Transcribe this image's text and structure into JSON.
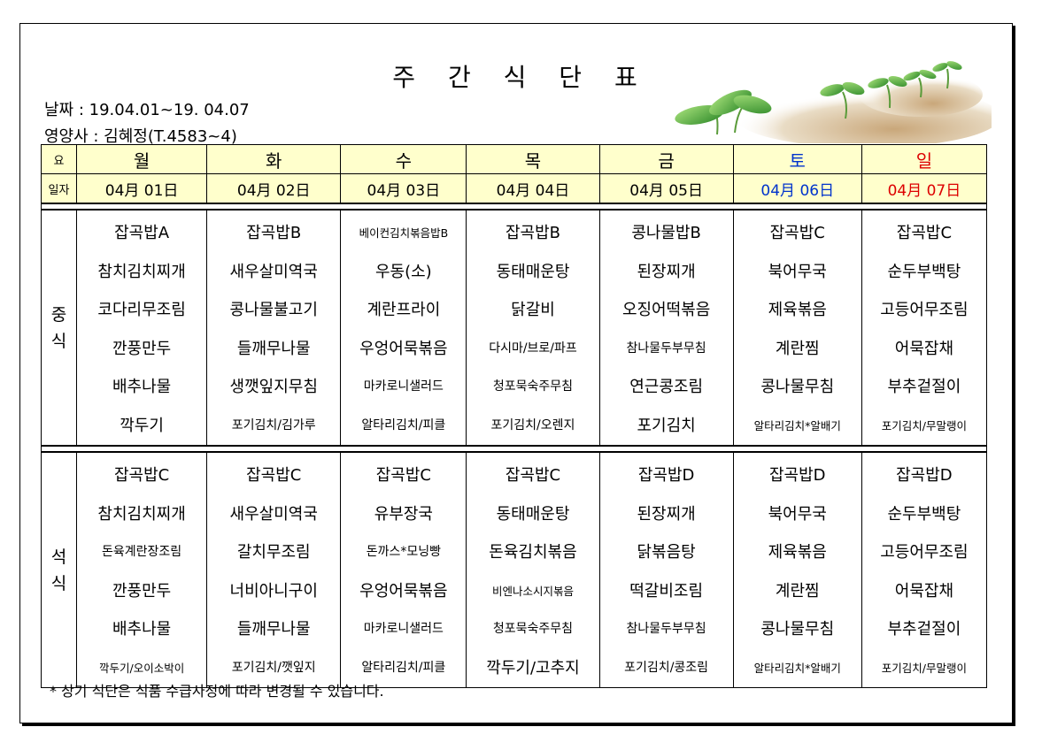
{
  "title": "주 간 식 단 표",
  "info": {
    "date": "날짜 : 19.04.01~19. 04.07",
    "dietitian": "영양사 : 김혜정(T.4583~4)"
  },
  "header": {
    "day_label": "요",
    "date_label": "일자",
    "days": [
      "월",
      "화",
      "수",
      "목",
      "금",
      "토",
      "일"
    ],
    "dates": [
      "04月 01日",
      "04月 02日",
      "04月 03日",
      "04月 04日",
      "04月 05日",
      "04月 06日",
      "04月 07日"
    ]
  },
  "lunch": {
    "label": "중\n식",
    "columns": [
      [
        "잡곡밥A",
        "참치김치찌개",
        "코다리무조림",
        "깐풍만두",
        "배추나물",
        "깍두기"
      ],
      [
        "잡곡밥B",
        "새우살미역국",
        "콩나물불고기",
        "들깨무나물",
        "생깻잎지무침",
        "포기김치/김가루"
      ],
      [
        "베이컨김치볶음밥B",
        "우동(소)",
        "계란프라이",
        "우엉어묵볶음",
        "마카로니샐러드",
        "알타리김치/피클"
      ],
      [
        "잡곡밥B",
        "동태매운탕",
        "닭갈비",
        "다시마/브로/파프",
        "청포묵숙주무침",
        "포기김치/오렌지"
      ],
      [
        "콩나물밥B",
        "된장찌개",
        "오징어떡볶음",
        "참나물두부무침",
        "연근콩조림",
        "포기김치"
      ],
      [
        "잡곡밥C",
        "북어무국",
        "제육볶음",
        "계란찜",
        "콩나물무침",
        "알타리김치*알배기"
      ],
      [
        "잡곡밥C",
        "순두부백탕",
        "고등어무조림",
        "어묵잡채",
        "부추겉절이",
        "포기김치/무말랭이"
      ]
    ]
  },
  "dinner": {
    "label": "석\n식",
    "columns": [
      [
        "잡곡밥C",
        "참치김치찌개",
        "돈육계란장조림",
        "깐풍만두",
        "배추나물",
        "깍두기/오이소박이"
      ],
      [
        "잡곡밥C",
        "새우살미역국",
        "갈치무조림",
        "너비아니구이",
        "들깨무나물",
        "포기김치/깻잎지"
      ],
      [
        "잡곡밥C",
        "유부장국",
        "돈까스*모닝빵",
        "우엉어묵볶음",
        "마카로니샐러드",
        "알타리김치/피클"
      ],
      [
        "잡곡밥C",
        "동태매운탕",
        "돈육김치볶음",
        "비엔나소시지볶음",
        "청포묵숙주무침",
        "깍두기/고추지"
      ],
      [
        "잡곡밥D",
        "된장찌개",
        "닭볶음탕",
        "떡갈비조림",
        "참나물두부무침",
        "포기김치/콩조림"
      ],
      [
        "잡곡밥D",
        "북어무국",
        "제육볶음",
        "계란찜",
        "콩나물무침",
        "알타리김치*알배기"
      ],
      [
        "잡곡밥D",
        "순두부백탕",
        "고등어무조림",
        "어묵잡채",
        "부추겉절이",
        "포기김치/무말랭이"
      ]
    ]
  },
  "note": "* 상기 식단은 식품 수급사정에 따라 변경될 수 있습니다.",
  "colors": {
    "header_bg": "#ffffcc",
    "saturday": "#0033cc",
    "sunday": "#dd0000"
  }
}
